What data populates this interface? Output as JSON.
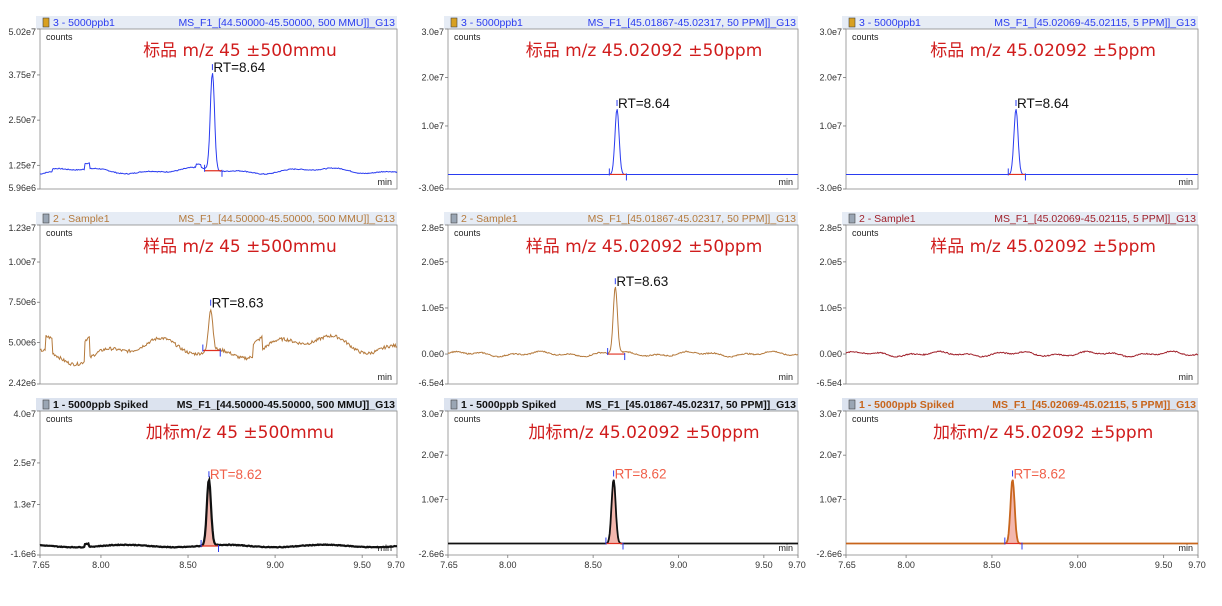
{
  "colors": {
    "blue": "#2a3cf0",
    "brown": "#b57a3c",
    "darkred": "#a0202a",
    "black": "#111111",
    "orange": "#c8651c",
    "annotation": "#d01c1c",
    "rt_red": "#f0604a",
    "baseline_red": "#e03020",
    "fill_pink": "#f3b7ae"
  },
  "x_axis": {
    "ticks": [
      "7.65",
      "8.00",
      "8.50",
      "9.00",
      "9.50",
      "9.70"
    ]
  },
  "chart_data": [
    {
      "type": "line",
      "header_left": "3 - 5000ppb1",
      "header_right": "MS_F1_[44.50000-45.50000, 500 MMU]]_G13",
      "annotation": "标品 m/z 45 ±500mmu",
      "rt_label": "RT=8.64",
      "ylim": [
        5960000.0,
        50200000.0
      ],
      "yticks": [
        "5.02e7",
        "3.75e7",
        "2.50e7",
        "1.25e7",
        "5.96e6"
      ],
      "ylabel": "counts",
      "xlabel": "min",
      "xlim": [
        7.65,
        9.7
      ],
      "peak_rt": 8.64,
      "peak_height": 27000000.0,
      "baseline": 11000000.0,
      "noise": "wavy",
      "color_key": "blue",
      "header_color_key": "blue",
      "filled": false
    },
    {
      "type": "line",
      "header_left": "3 - 5000ppb1",
      "header_right": "MS_F1_[45.01867-45.02317, 50 PPM]]_G13",
      "annotation": "标品 m/z 45.02092 ±50ppm",
      "rt_label": "RT=8.64",
      "ylim": [
        -3000000.0,
        30000000.0
      ],
      "yticks": [
        "3.0e7",
        "2.0e7",
        "1.0e7",
        "-3.0e6"
      ],
      "ylabel": "counts",
      "xlabel": "min",
      "xlim": [
        7.65,
        9.7
      ],
      "peak_rt": 8.64,
      "peak_height": 13500000.0,
      "baseline": 0,
      "noise": "flat",
      "color_key": "blue",
      "header_color_key": "blue",
      "filled": false
    },
    {
      "type": "line",
      "header_left": "3 - 5000ppb1",
      "header_right": "MS_F1_[45.02069-45.02115, 5 PPM]]_G13",
      "annotation": "标品 m/z 45.02092 ±5ppm",
      "rt_label": "RT=8.64",
      "ylim": [
        -3000000.0,
        30000000.0
      ],
      "yticks": [
        "3.0e7",
        "2.0e7",
        "1.0e7",
        "-3.0e6"
      ],
      "ylabel": "counts",
      "xlabel": "min",
      "xlim": [
        7.65,
        9.7
      ],
      "peak_rt": 8.64,
      "peak_height": 13500000.0,
      "baseline": 0,
      "noise": "flat",
      "color_key": "blue",
      "header_color_key": "blue",
      "filled": false
    },
    {
      "type": "line",
      "header_left": "2 - Sample1",
      "header_right": "MS_F1_[44.50000-45.50000, 500 MMU]]_G13",
      "annotation": "样品 m/z 45 ±500mmu",
      "rt_label": "RT=8.63",
      "ylim": [
        2420000.0,
        12300000.0
      ],
      "yticks": [
        "1.23e7",
        "1.00e7",
        "7.50e6",
        "5.00e6",
        "2.42e6"
      ],
      "ylabel": "counts",
      "xlabel": "min",
      "xlim": [
        7.65,
        9.7
      ],
      "peak_rt": 8.63,
      "peak_height": 2600000.0,
      "baseline": 4500000.0,
      "noise": "hilly",
      "color_key": "brown",
      "header_color_key": "brown",
      "filled": false
    },
    {
      "type": "line",
      "header_left": "2 - Sample1",
      "header_right": "MS_F1_[45.01867-45.02317, 50 PPM]]_G13",
      "annotation": "样品 m/z 45.02092 ±50ppm",
      "rt_label": "RT=8.63",
      "ylim": [
        -65000.0,
        280000.0
      ],
      "yticks": [
        "2.8e5",
        "2.0e5",
        "1.0e5",
        "0.0e0",
        "-6.5e4"
      ],
      "ylabel": "counts",
      "xlabel": "min",
      "xlim": [
        7.65,
        9.7
      ],
      "peak_rt": 8.63,
      "peak_height": 145000.0,
      "baseline": 0,
      "noise": "wavy-small",
      "color_key": "brown",
      "header_color_key": "brown",
      "filled": false
    },
    {
      "type": "line",
      "header_left": "2 - Sample1",
      "header_right": "MS_F1_[45.02069-45.02115, 5 PPM]]_G13",
      "annotation": "样品 m/z 45.02092 ±5ppm",
      "rt_label": "",
      "ylim": [
        -65000.0,
        280000.0
      ],
      "yticks": [
        "2.8e5",
        "2.0e5",
        "1.0e5",
        "0.0e0",
        "-6.5e4"
      ],
      "ylabel": "counts",
      "xlabel": "min",
      "xlim": [
        7.65,
        9.7
      ],
      "peak_rt": null,
      "peak_height": 0,
      "baseline": 0,
      "noise": "wavy-small",
      "color_key": "darkred",
      "header_color_key": "darkred",
      "filled": false
    },
    {
      "type": "line",
      "header_left": "1 - 5000ppb Spiked",
      "header_right": "MS_F1_[44.50000-45.50000, 500 MMU]]_G13",
      "annotation": "加标m/z 45 ±500mmu",
      "rt_label": "RT=8.62",
      "ylim": [
        -1600000.0,
        40000000.0
      ],
      "yticks": [
        "4.0e7",
        "2.5e7",
        "1.3e7",
        "-1.6e6"
      ],
      "ylabel": "counts",
      "xlabel": "min",
      "xlim": [
        7.65,
        9.7
      ],
      "peak_rt": 8.62,
      "peak_height": 19000000.0,
      "baseline": 1000000.0,
      "noise": "small",
      "color_key": "black",
      "header_color_key": "black",
      "filled": true
    },
    {
      "type": "line",
      "header_left": "1 - 5000ppb Spiked",
      "header_right": "MS_F1_[45.01867-45.02317, 50 PPM]]_G13",
      "annotation": "加标m/z 45.02092 ±50ppm",
      "rt_label": "RT=8.62",
      "ylim": [
        -2600000.0,
        30000000.0
      ],
      "yticks": [
        "3.0e7",
        "2.0e7",
        "1.0e7",
        "-2.6e6"
      ],
      "ylabel": "counts",
      "xlabel": "min",
      "xlim": [
        7.65,
        9.7
      ],
      "peak_rt": 8.62,
      "peak_height": 14500000.0,
      "baseline": 0,
      "noise": "flat",
      "color_key": "black",
      "header_color_key": "black",
      "filled": true
    },
    {
      "type": "line",
      "header_left": "1 - 5000ppb Spiked",
      "header_right": "MS_F1_[45.02069-45.02115, 5 PPM]]_G13",
      "annotation": "加标m/z 45.02092 ±5ppm",
      "rt_label": "RT=8.62",
      "ylim": [
        -2600000.0,
        30000000.0
      ],
      "yticks": [
        "3.0e7",
        "2.0e7",
        "1.0e7",
        "-2.6e6"
      ],
      "ylabel": "counts",
      "xlabel": "min",
      "xlim": [
        7.65,
        9.7
      ],
      "peak_rt": 8.62,
      "peak_height": 14500000.0,
      "baseline": 0,
      "noise": "flat",
      "color_key": "orange",
      "header_color_key": "orange",
      "filled": true
    }
  ]
}
